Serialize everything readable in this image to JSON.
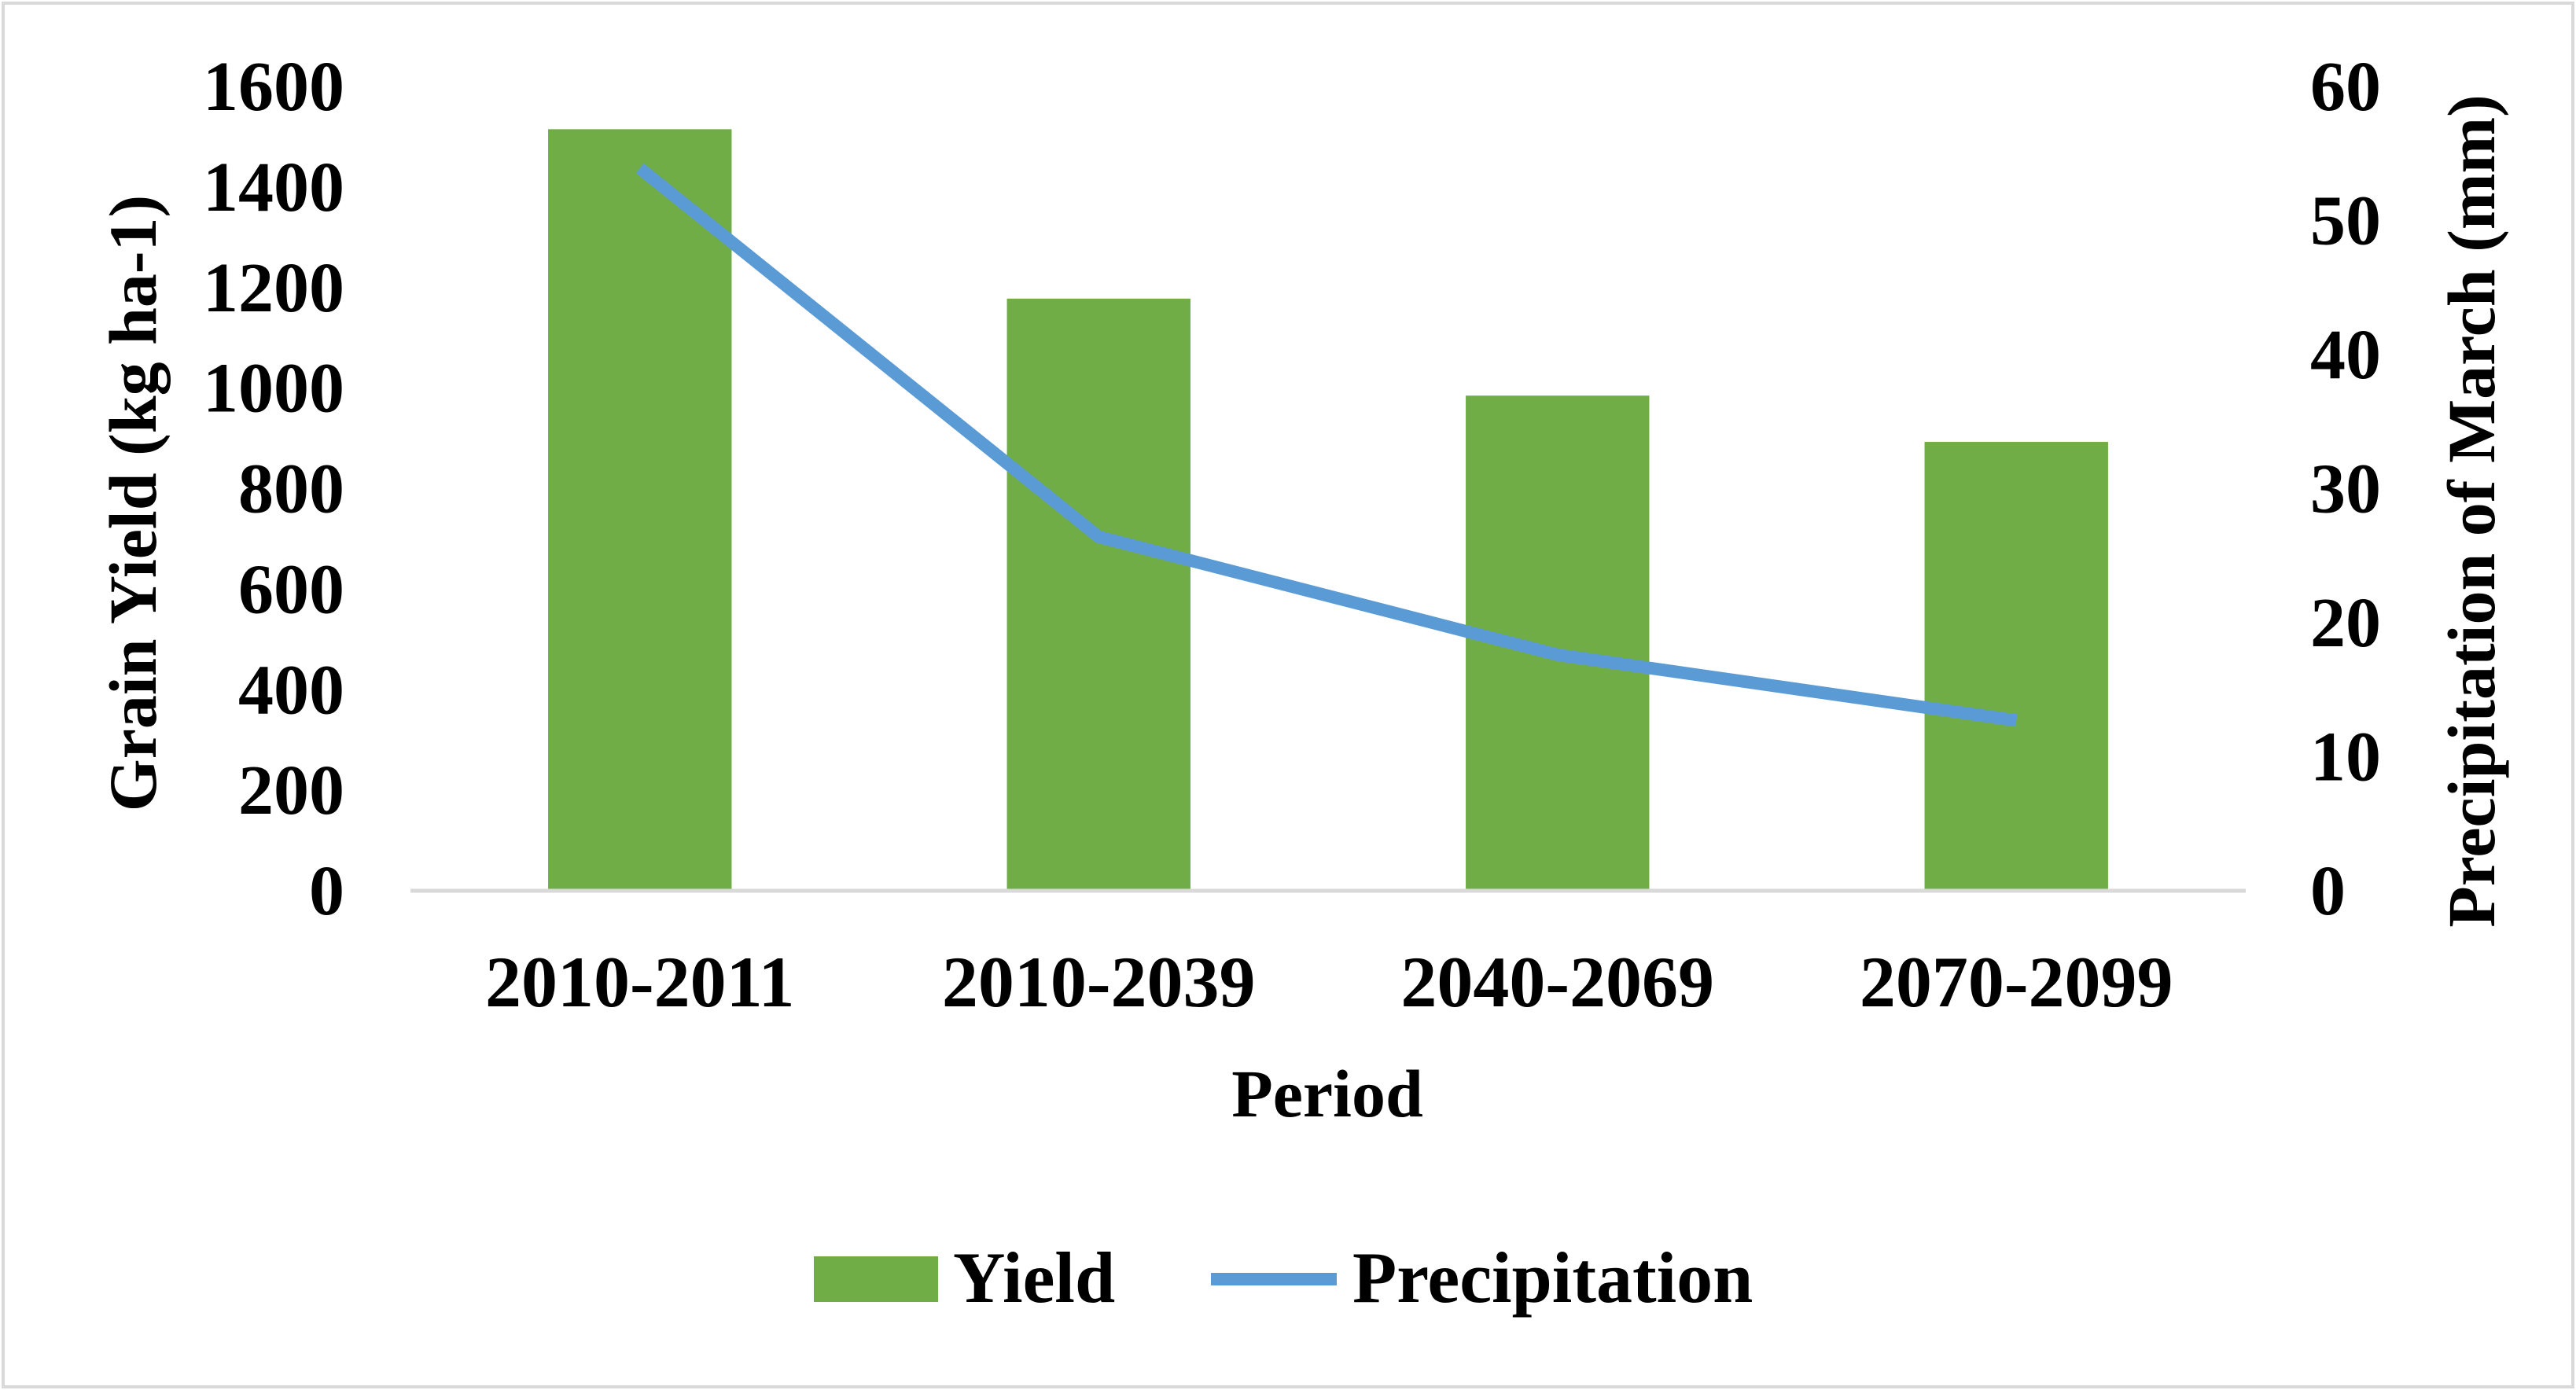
{
  "chart_data": {
    "type": "bar",
    "title": "",
    "categories": [
      "2010-2011",
      "2010-2039",
      "2040-2069",
      "2070-2099"
    ],
    "xlabel": "Period",
    "ylabel": "Grain Yield (kg ha-1)",
    "ylabel_right": "Precipitation of March (mm)",
    "ylim": [
      0,
      1600
    ],
    "ylim_right": [
      0,
      60
    ],
    "yticks": [
      "0",
      "200",
      "400",
      "600",
      "800",
      "1000",
      "1200",
      "1400",
      "1600"
    ],
    "yticks_right": [
      "0",
      "10",
      "20",
      "30",
      "40",
      "50",
      "60"
    ],
    "legend_position": "bottom",
    "series": [
      {
        "name": "Yield",
        "type": "bar",
        "axis": "left",
        "color": "#70AD47",
        "values": [
          1515,
          1178,
          985,
          893
        ]
      },
      {
        "name": "Precipitation",
        "type": "line",
        "axis": "right",
        "color": "#5B9BD5",
        "values": [
          53.9,
          26.4,
          17.6,
          12.7
        ]
      }
    ]
  }
}
